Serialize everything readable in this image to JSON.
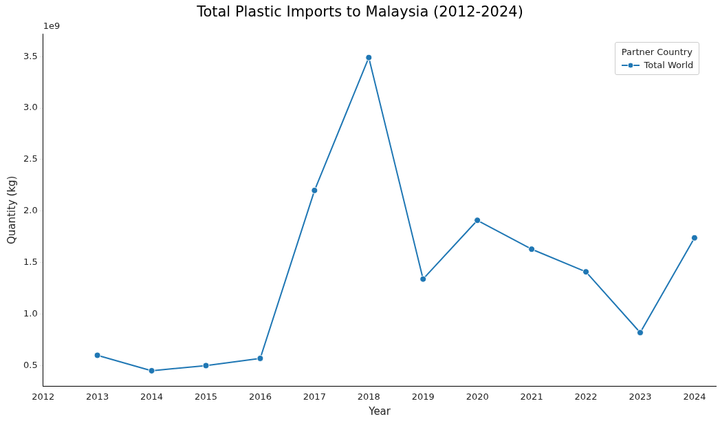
{
  "chart_data": {
    "type": "line",
    "title": "Total Plastic Imports to Malaysia (2012-2024)",
    "xlabel": "Year",
    "ylabel": "Quantity (kg)",
    "legend_title": "Partner Country",
    "annotations": [
      "1e9"
    ],
    "x": [
      2013,
      2014,
      2015,
      2016,
      2017,
      2018,
      2019,
      2020,
      2021,
      2022,
      2023,
      2024
    ],
    "series": [
      {
        "name": "Total World",
        "color": "#1f77b4",
        "values": [
          0.6,
          0.45,
          0.5,
          0.57,
          2.2,
          3.49,
          1.34,
          1.91,
          1.63,
          1.41,
          0.82,
          1.74
        ]
      }
    ],
    "xlim": [
      2012,
      2024.4
    ],
    "xticks": [
      2012,
      2013,
      2014,
      2015,
      2016,
      2017,
      2018,
      2019,
      2020,
      2021,
      2022,
      2023,
      2024
    ],
    "ylim": [
      0.3,
      3.72
    ],
    "yticks": [
      {
        "value": 0.5,
        "label": "0.5"
      },
      {
        "value": 1,
        "label": "1.0"
      },
      {
        "value": 1.5,
        "label": "1.5"
      },
      {
        "value": 2,
        "label": "2.0"
      },
      {
        "value": 2.5,
        "label": "2.5"
      },
      {
        "value": 3,
        "label": "3.0"
      },
      {
        "value": 3.5,
        "label": "3.5"
      }
    ],
    "grid": false,
    "legend": "top right",
    "marker": "circle",
    "line_style": "solid"
  }
}
